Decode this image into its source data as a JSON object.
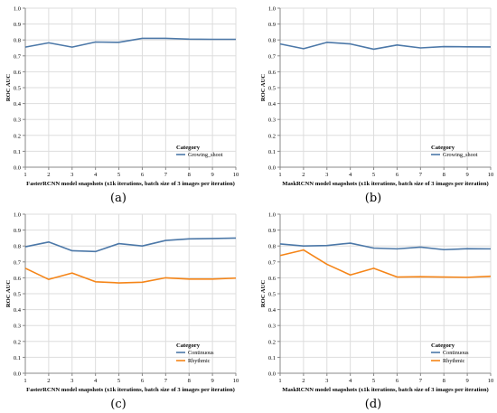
{
  "colors": {
    "continuous": "#4c78a8",
    "rhythmic": "#f58518",
    "grid": "#dddddd",
    "axis": "#888888",
    "text": "#000000"
  },
  "chart_data": [
    {
      "type": "line",
      "panel_label": "(a)",
      "xlabel": "FasterRCNN model snapshots (x1k iterations, batch size of 3 images per iteration)",
      "ylabel": "ROC AUC",
      "x": [
        1,
        2,
        3,
        4,
        5,
        6,
        7,
        8,
        9,
        10
      ],
      "xlim": [
        1,
        10
      ],
      "ylim": [
        0,
        1
      ],
      "yticks": [
        "0.0",
        "0.1",
        "0.2",
        "0.3",
        "0.4",
        "0.5",
        "0.6",
        "0.7",
        "0.8",
        "0.9",
        "1.0"
      ],
      "grid": true,
      "legend_title": "Category",
      "legend_position": "bottom-right",
      "series": [
        {
          "name": "Growing_shoot",
          "color": "#4c78a8",
          "values": [
            0.755,
            0.782,
            0.755,
            0.787,
            0.785,
            0.81,
            0.81,
            0.805,
            0.804,
            0.804
          ]
        }
      ]
    },
    {
      "type": "line",
      "panel_label": "(b)",
      "xlabel": "MaskRCNN model snapshots (x1k iterations, batch size of 3 images per iteration)",
      "ylabel": "ROC AUC",
      "x": [
        1,
        2,
        3,
        4,
        5,
        6,
        7,
        8,
        9,
        10
      ],
      "xlim": [
        1,
        10
      ],
      "ylim": [
        0,
        1
      ],
      "yticks": [
        "0.0",
        "0.1",
        "0.2",
        "0.3",
        "0.4",
        "0.5",
        "0.6",
        "0.7",
        "0.8",
        "0.9",
        "1.0"
      ],
      "grid": true,
      "legend_title": "Category",
      "legend_position": "bottom-right",
      "series": [
        {
          "name": "Growing_shoot",
          "color": "#4c78a8",
          "values": [
            0.775,
            0.745,
            0.785,
            0.775,
            0.742,
            0.768,
            0.75,
            0.758,
            0.757,
            0.756
          ]
        }
      ]
    },
    {
      "type": "line",
      "panel_label": "(c)",
      "xlabel": "FasterRCNN model snapshots (x1k iterations, batch size of 3 images per iteration)",
      "ylabel": "ROC AUC",
      "x": [
        1,
        2,
        3,
        4,
        5,
        6,
        7,
        8,
        9,
        10
      ],
      "xlim": [
        1,
        10
      ],
      "ylim": [
        0,
        1
      ],
      "yticks": [
        "0.0",
        "0.1",
        "0.2",
        "0.3",
        "0.4",
        "0.5",
        "0.6",
        "0.7",
        "0.8",
        "0.9",
        "1.0"
      ],
      "grid": true,
      "legend_title": "Category",
      "legend_position": "bottom-right",
      "series": [
        {
          "name": "Continuous",
          "color": "#4c78a8",
          "values": [
            0.795,
            0.825,
            0.77,
            0.765,
            0.815,
            0.8,
            0.835,
            0.845,
            0.847,
            0.85
          ]
        },
        {
          "name": "Rhythmic",
          "color": "#f58518",
          "values": [
            0.66,
            0.59,
            0.63,
            0.575,
            0.568,
            0.572,
            0.6,
            0.592,
            0.592,
            0.598
          ]
        }
      ]
    },
    {
      "type": "line",
      "panel_label": "(d)",
      "xlabel": "MaskRCNN model snapshots (x1k iterations, batch size of 3 images per iteration)",
      "ylabel": "ROC AUC",
      "x": [
        1,
        2,
        3,
        4,
        5,
        6,
        7,
        8,
        9,
        10
      ],
      "xlim": [
        1,
        10
      ],
      "ylim": [
        0,
        1
      ],
      "yticks": [
        "0.0",
        "0.1",
        "0.2",
        "0.3",
        "0.4",
        "0.5",
        "0.6",
        "0.7",
        "0.8",
        "0.9",
        "1.0"
      ],
      "grid": true,
      "legend_title": "Category",
      "legend_position": "bottom-right",
      "series": [
        {
          "name": "Continuous",
          "color": "#4c78a8",
          "values": [
            0.813,
            0.8,
            0.803,
            0.818,
            0.787,
            0.782,
            0.793,
            0.777,
            0.783,
            0.782
          ]
        },
        {
          "name": "Rhythmic",
          "color": "#f58518",
          "values": [
            0.74,
            0.775,
            0.685,
            0.618,
            0.66,
            0.605,
            0.607,
            0.605,
            0.603,
            0.61
          ]
        }
      ]
    }
  ]
}
